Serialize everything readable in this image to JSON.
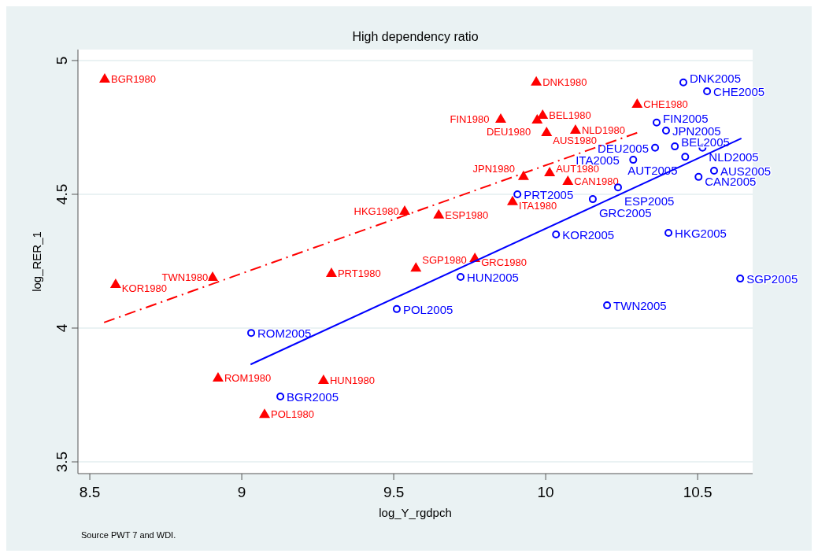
{
  "chart_data": {
    "type": "scatter",
    "title": "High dependency ratio",
    "xlabel": "log_Y_rgdpch",
    "ylabel": "log_RER_1",
    "xlim": [
      8.461,
      10.681
    ],
    "ylim": [
      3.456,
      5.041
    ],
    "xticks": [
      8.5,
      9,
      9.5,
      10,
      10.5
    ],
    "yticks": [
      3.5,
      4,
      4.5,
      5
    ],
    "grid": "y",
    "annotations": [
      "Source PWT 7 and WDI."
    ],
    "series": [
      {
        "color": "#ff0000",
        "marker": "triangle",
        "x": [
          8.549,
          9.969,
          10.301,
          9.99,
          9.852,
          9.972,
          10.098,
          10.003,
          10.013,
          9.927,
          10.073,
          9.891,
          9.536,
          9.648,
          9.767,
          9.573,
          9.295,
          8.904,
          8.585,
          8.922,
          9.269,
          9.075
        ],
        "values": [
          4.932,
          4.921,
          4.838,
          4.797,
          4.782,
          4.779,
          4.741,
          4.732,
          4.582,
          4.568,
          4.55,
          4.474,
          4.438,
          4.424,
          4.262,
          4.226,
          4.206,
          4.191,
          4.165,
          3.815,
          3.806,
          3.679
        ],
        "value_labels": [
          "BGR1980",
          "DNK1980",
          "CHE1980",
          "BEL1980",
          "FIN1980",
          "DEU1980",
          "NLD1980",
          "AUS1980",
          "AUT1980",
          "JPN1980",
          "CAN1980",
          "ITA1980",
          "HKG1980",
          "ESP1980",
          "GRC1980",
          "SGP1980",
          "PRT1980",
          "TWN1980",
          "KOR1980",
          "ROM1980",
          "HUN1980",
          "POL1980"
        ]
      },
      {
        "color": "#0000ff",
        "marker": "circle",
        "x": [
          10.453,
          10.531,
          10.365,
          10.396,
          10.36,
          10.425,
          10.516,
          10.459,
          10.288,
          10.554,
          10.503,
          10.238,
          9.907,
          10.155,
          10.034,
          10.404,
          9.72,
          10.64,
          9.51,
          10.202,
          9.031,
          9.127
        ],
        "values": [
          4.918,
          4.885,
          4.768,
          4.738,
          4.674,
          4.679,
          4.674,
          4.64,
          4.629,
          4.588,
          4.565,
          4.526,
          4.5,
          4.482,
          4.35,
          4.356,
          4.191,
          4.185,
          4.071,
          4.085,
          3.982,
          3.744
        ],
        "value_labels": [
          "DNK2005",
          "CHE2005",
          "FIN2005",
          "JPN2005",
          "DEU2005",
          "BEL2005",
          "NLD2005",
          "AUT2005",
          "ITA2005",
          "AUS2005",
          "CAN2005",
          "ESP2005",
          "PRT2005",
          "GRC2005",
          "KOR2005",
          "HKG2005",
          "HUN2005",
          "SGP2005",
          "POL2005",
          "TWN2005",
          "ROM2005",
          "BGR2005"
        ]
      },
      {
        "type": "line",
        "color": "#ff0000",
        "line_style": "dashed",
        "x": [
          8.547,
          10.301
        ],
        "values": [
          4.021,
          4.73
        ]
      },
      {
        "type": "line",
        "color": "#0000ff",
        "line_style": "solid",
        "x": [
          9.029,
          10.644
        ],
        "values": [
          3.864,
          4.709
        ]
      }
    ]
  }
}
